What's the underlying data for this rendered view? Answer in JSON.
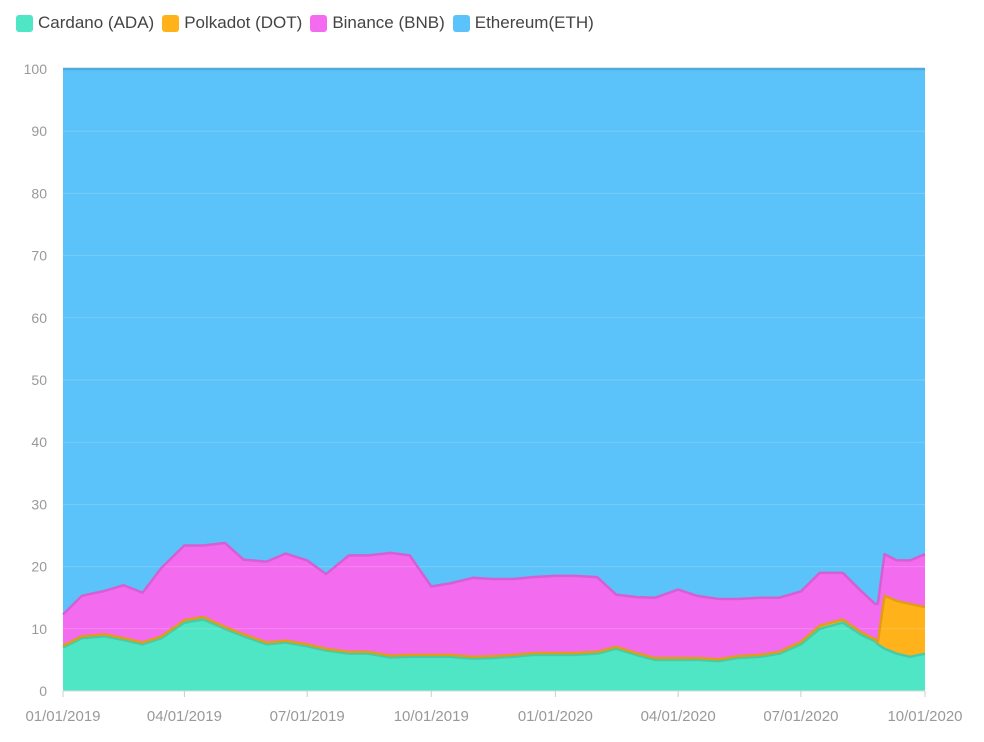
{
  "chart_data": {
    "type": "area",
    "stacked": true,
    "title": "",
    "xlabel": "",
    "ylabel": "",
    "ylim": [
      0,
      100
    ],
    "yticks": [
      0,
      10,
      20,
      30,
      40,
      50,
      60,
      70,
      80,
      90,
      100
    ],
    "xlim": [
      "2019-01-01",
      "2020-10-01"
    ],
    "xticks": [
      "2019-01-01",
      "2019-04-01",
      "2019-07-01",
      "2019-10-01",
      "2020-01-01",
      "2020-04-01",
      "2020-07-01",
      "2020-10-01"
    ],
    "xtick_labels": [
      "01/01/2019",
      "04/01/2019",
      "07/01/2019",
      "10/01/2019",
      "01/01/2020",
      "04/01/2020",
      "07/01/2020",
      "10/01/2020"
    ],
    "grid": true,
    "legend_position": "top-left",
    "x": [
      "2019-01-01",
      "2019-01-15",
      "2019-02-01",
      "2019-02-15",
      "2019-03-01",
      "2019-03-15",
      "2019-04-01",
      "2019-04-15",
      "2019-05-01",
      "2019-05-15",
      "2019-06-01",
      "2019-06-15",
      "2019-07-01",
      "2019-07-15",
      "2019-08-01",
      "2019-08-15",
      "2019-09-01",
      "2019-09-15",
      "2019-10-01",
      "2019-10-15",
      "2019-11-01",
      "2019-11-15",
      "2019-12-01",
      "2019-12-15",
      "2020-01-01",
      "2020-01-15",
      "2020-02-01",
      "2020-02-15",
      "2020-03-01",
      "2020-03-15",
      "2020-04-01",
      "2020-04-15",
      "2020-05-01",
      "2020-05-15",
      "2020-06-01",
      "2020-06-15",
      "2020-07-01",
      "2020-07-15",
      "2020-08-01",
      "2020-08-15",
      "2020-08-25",
      "2020-08-27",
      "2020-09-01",
      "2020-09-10",
      "2020-09-20",
      "2020-10-01"
    ],
    "series": [
      {
        "name": "Cardano (ADA)",
        "color": "#4ee6c4",
        "values": [
          7.0,
          8.5,
          8.8,
          8.2,
          7.5,
          8.5,
          11.0,
          11.5,
          10.0,
          8.8,
          7.5,
          7.8,
          7.2,
          6.5,
          6.0,
          6.0,
          5.4,
          5.5,
          5.5,
          5.5,
          5.2,
          5.3,
          5.5,
          5.8,
          5.8,
          5.8,
          6.0,
          6.8,
          5.8,
          5.0,
          5.0,
          5.0,
          4.8,
          5.3,
          5.5,
          6.0,
          7.5,
          10.0,
          11.0,
          9.0,
          8.0,
          7.5,
          6.8,
          6.0,
          5.5,
          6.0
        ]
      },
      {
        "name": "Polkadot (DOT)",
        "color": "#ffb21a",
        "values": [
          0.3,
          0.3,
          0.3,
          0.3,
          0.3,
          0.3,
          0.4,
          0.4,
          0.3,
          0.3,
          0.3,
          0.3,
          0.3,
          0.3,
          0.3,
          0.3,
          0.3,
          0.3,
          0.3,
          0.3,
          0.3,
          0.3,
          0.3,
          0.3,
          0.3,
          0.3,
          0.3,
          0.3,
          0.3,
          0.3,
          0.3,
          0.3,
          0.3,
          0.3,
          0.3,
          0.3,
          0.4,
          0.5,
          0.5,
          0.4,
          0.3,
          0.3,
          8.5,
          8.5,
          8.5,
          7.5
        ]
      },
      {
        "name": "Binance (BNB)",
        "color": "#f36cf0",
        "values": [
          5.0,
          6.5,
          7.0,
          8.5,
          8.0,
          11.0,
          12.0,
          11.5,
          13.5,
          12.0,
          13.0,
          14.0,
          13.5,
          12.0,
          15.5,
          15.5,
          16.5,
          16.0,
          11.0,
          11.5,
          12.7,
          12.4,
          12.2,
          12.2,
          12.4,
          12.4,
          12.0,
          8.4,
          9.0,
          9.7,
          11.0,
          10.0,
          9.7,
          9.2,
          9.2,
          8.7,
          8.1,
          8.5,
          7.5,
          6.6,
          5.7,
          6.2,
          6.7,
          6.5,
          7.0,
          8.5
        ]
      },
      {
        "name": "Ethereum(ETH)",
        "color": "#5bc2fa",
        "values": [
          87.7,
          84.7,
          83.9,
          83.0,
          84.2,
          80.2,
          76.6,
          76.6,
          76.2,
          78.9,
          79.2,
          77.9,
          79.0,
          81.2,
          78.2,
          78.2,
          77.8,
          78.2,
          83.2,
          82.7,
          81.8,
          82.0,
          82.0,
          81.7,
          81.5,
          81.5,
          81.7,
          84.5,
          84.9,
          85.0,
          83.7,
          84.7,
          85.2,
          85.2,
          85.0,
          85.0,
          84.0,
          81.0,
          81.0,
          84.0,
          86.0,
          86.0,
          78.0,
          79.0,
          79.0,
          78.0
        ]
      }
    ]
  }
}
